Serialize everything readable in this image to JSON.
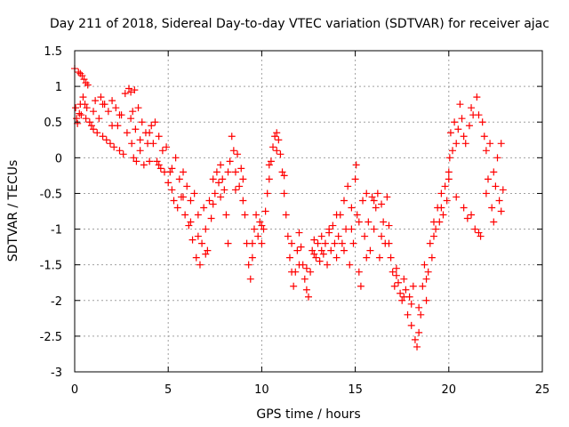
{
  "chart_data": {
    "type": "scatter",
    "title": "Day 211 of 2018, Sidereal Day-to-day VTEC variation (SDTVAR) for receiver ajac",
    "xlabel": "GPS time / hours",
    "ylabel": "SDTVAR / TECUs",
    "xlim": [
      0,
      25
    ],
    "ylim": [
      -3,
      1.5
    ],
    "xticks": [
      "0",
      "5",
      "10",
      "15",
      "20",
      "25"
    ],
    "yticks": [
      "-3",
      "-2.5",
      "-2",
      "-1.5",
      "-1",
      "-0.5",
      "0",
      "0.5",
      "1",
      "1.5"
    ],
    "grid": true,
    "marker": "plus",
    "colors": {
      "points": "#ff0000",
      "grid": "#a0a0a0"
    },
    "series": [
      {
        "points": [
          [
            0.0,
            1.25
          ],
          [
            0.05,
            0.7
          ],
          [
            0.1,
            0.55
          ],
          [
            0.15,
            0.48
          ],
          [
            0.2,
            1.2
          ],
          [
            0.25,
            0.62
          ],
          [
            0.3,
            1.18
          ],
          [
            0.35,
            0.6
          ],
          [
            0.4,
            1.15
          ],
          [
            0.45,
            0.85
          ],
          [
            0.5,
            1.1
          ],
          [
            0.55,
            0.75
          ],
          [
            0.6,
            1.05
          ],
          [
            0.65,
            0.7
          ],
          [
            0.7,
            1.02
          ],
          [
            0.8,
            0.5
          ],
          [
            0.9,
            0.45
          ],
          [
            1.0,
            0.4
          ],
          [
            1.1,
            0.8
          ],
          [
            1.2,
            0.35
          ],
          [
            1.3,
            0.55
          ],
          [
            1.4,
            0.85
          ],
          [
            1.5,
            0.3
          ],
          [
            1.6,
            0.75
          ],
          [
            1.7,
            0.25
          ],
          [
            1.8,
            0.65
          ],
          [
            1.9,
            0.2
          ],
          [
            2.0,
            0.8
          ],
          [
            2.1,
            0.15
          ],
          [
            2.2,
            0.7
          ],
          [
            2.3,
            0.45
          ],
          [
            2.4,
            0.1
          ],
          [
            2.5,
            0.6
          ],
          [
            2.6,
            0.05
          ],
          [
            2.7,
            0.9
          ],
          [
            2.8,
            0.35
          ],
          [
            2.9,
            0.97
          ],
          [
            3.0,
            0.92
          ],
          [
            3.05,
            0.2
          ],
          [
            3.1,
            0.65
          ],
          [
            3.15,
            0.0
          ],
          [
            3.2,
            0.95
          ],
          [
            3.25,
            0.4
          ],
          [
            3.3,
            -0.05
          ],
          [
            3.4,
            0.7
          ],
          [
            3.5,
            0.1
          ],
          [
            3.6,
            0.5
          ],
          [
            3.7,
            -0.1
          ],
          [
            3.8,
            0.35
          ],
          [
            3.9,
            0.2
          ],
          [
            4.0,
            -0.05
          ],
          [
            4.1,
            0.45
          ],
          [
            4.2,
            0.2
          ],
          [
            4.3,
            0.5
          ],
          [
            4.4,
            -0.05
          ],
          [
            4.5,
            0.3
          ],
          [
            4.6,
            -0.15
          ],
          [
            4.7,
            0.1
          ],
          [
            4.8,
            -0.2
          ],
          [
            4.9,
            0.15
          ],
          [
            5.0,
            -0.35
          ],
          [
            5.1,
            -0.2
          ],
          [
            5.2,
            -0.45
          ],
          [
            5.3,
            -0.6
          ],
          [
            5.4,
            0.0
          ],
          [
            5.5,
            -0.7
          ],
          [
            5.6,
            -0.3
          ],
          [
            5.7,
            -0.55
          ],
          [
            5.8,
            -0.2
          ],
          [
            5.9,
            -0.8
          ],
          [
            6.0,
            -0.4
          ],
          [
            6.1,
            -0.95
          ],
          [
            6.2,
            -0.6
          ],
          [
            6.3,
            -1.15
          ],
          [
            6.4,
            -0.5
          ],
          [
            6.5,
            -1.4
          ],
          [
            6.6,
            -0.8
          ],
          [
            6.7,
            -1.5
          ],
          [
            6.8,
            -1.2
          ],
          [
            6.9,
            -0.7
          ],
          [
            7.0,
            -1.0
          ],
          [
            7.1,
            -1.3
          ],
          [
            7.2,
            -0.6
          ],
          [
            7.3,
            -0.85
          ],
          [
            7.4,
            -0.3
          ],
          [
            7.5,
            -0.5
          ],
          [
            7.6,
            -0.2
          ],
          [
            7.7,
            -0.35
          ],
          [
            7.8,
            -0.1
          ],
          [
            7.9,
            -0.3
          ],
          [
            8.0,
            -0.45
          ],
          [
            8.1,
            -0.8
          ],
          [
            8.2,
            -1.2
          ],
          [
            8.3,
            -0.05
          ],
          [
            8.4,
            0.3
          ],
          [
            8.5,
            0.1
          ],
          [
            8.6,
            -0.2
          ],
          [
            8.7,
            0.05
          ],
          [
            8.8,
            -0.4
          ],
          [
            8.9,
            -0.15
          ],
          [
            9.0,
            -0.3
          ],
          [
            9.1,
            -0.8
          ],
          [
            9.2,
            -1.2
          ],
          [
            9.3,
            -1.5
          ],
          [
            9.4,
            -1.7
          ],
          [
            9.5,
            -1.4
          ],
          [
            9.6,
            -1.0
          ],
          [
            9.7,
            -0.8
          ],
          [
            9.8,
            -1.1
          ],
          [
            9.9,
            -0.9
          ],
          [
            10.0,
            -1.2
          ],
          [
            10.1,
            -1.0
          ],
          [
            10.2,
            -0.75
          ],
          [
            10.3,
            -0.5
          ],
          [
            10.4,
            -0.3
          ],
          [
            10.5,
            -0.05
          ],
          [
            10.6,
            0.15
          ],
          [
            10.7,
            0.3
          ],
          [
            10.8,
            0.35
          ],
          [
            10.9,
            0.25
          ],
          [
            11.0,
            0.05
          ],
          [
            11.1,
            -0.2
          ],
          [
            11.2,
            -0.5
          ],
          [
            11.3,
            -0.8
          ],
          [
            11.4,
            -1.1
          ],
          [
            11.5,
            -1.4
          ],
          [
            11.6,
            -1.6
          ],
          [
            11.7,
            -1.8
          ],
          [
            11.8,
            -1.6
          ],
          [
            11.9,
            -1.3
          ],
          [
            12.0,
            -1.05
          ],
          [
            12.1,
            -1.25
          ],
          [
            12.2,
            -1.5
          ],
          [
            12.3,
            -1.7
          ],
          [
            12.4,
            -1.85
          ],
          [
            12.5,
            -1.95
          ],
          [
            12.6,
            -1.6
          ],
          [
            12.7,
            -1.3
          ],
          [
            12.8,
            -1.15
          ],
          [
            12.9,
            -1.4
          ],
          [
            13.0,
            -1.2
          ],
          [
            13.1,
            -1.45
          ],
          [
            13.2,
            -1.1
          ],
          [
            13.3,
            -1.35
          ],
          [
            13.4,
            -1.2
          ],
          [
            13.5,
            -1.5
          ],
          [
            13.6,
            -1.05
          ],
          [
            13.7,
            -1.3
          ],
          [
            13.8,
            -0.95
          ],
          [
            13.9,
            -1.2
          ],
          [
            14.0,
            -1.4
          ],
          [
            14.1,
            -1.1
          ],
          [
            14.2,
            -0.8
          ],
          [
            14.3,
            -1.2
          ],
          [
            14.4,
            -0.6
          ],
          [
            14.5,
            -1.0
          ],
          [
            14.6,
            -0.4
          ],
          [
            14.7,
            -1.5
          ],
          [
            14.8,
            -0.7
          ],
          [
            14.9,
            -1.2
          ],
          [
            15.0,
            -0.3
          ],
          [
            15.05,
            -0.1
          ],
          [
            15.1,
            -0.8
          ],
          [
            15.2,
            -1.6
          ],
          [
            15.3,
            -1.8
          ],
          [
            15.4,
            -0.6
          ],
          [
            15.5,
            -1.1
          ],
          [
            15.6,
            -0.5
          ],
          [
            15.7,
            -0.9
          ],
          [
            15.8,
            -1.3
          ],
          [
            15.9,
            -0.55
          ],
          [
            16.0,
            -1.0
          ],
          [
            16.1,
            -0.7
          ],
          [
            16.2,
            -0.5
          ],
          [
            16.3,
            -1.4
          ],
          [
            16.4,
            -0.65
          ],
          [
            16.5,
            -0.9
          ],
          [
            16.6,
            -1.2
          ],
          [
            16.7,
            -0.55
          ],
          [
            16.8,
            -0.95
          ],
          [
            16.9,
            -1.4
          ],
          [
            17.0,
            -1.6
          ],
          [
            17.1,
            -1.8
          ],
          [
            17.2,
            -1.55
          ],
          [
            17.3,
            -1.75
          ],
          [
            17.4,
            -1.9
          ],
          [
            17.5,
            -2.0
          ],
          [
            17.6,
            -1.7
          ],
          [
            17.7,
            -1.85
          ],
          [
            17.8,
            -2.2
          ],
          [
            17.9,
            -1.95
          ],
          [
            18.0,
            -2.35
          ],
          [
            18.1,
            -1.8
          ],
          [
            18.2,
            -2.55
          ],
          [
            18.3,
            -2.65
          ],
          [
            18.4,
            -2.45
          ],
          [
            18.5,
            -2.2
          ],
          [
            18.6,
            -1.8
          ],
          [
            18.7,
            -1.5
          ],
          [
            18.8,
            -2.0
          ],
          [
            18.9,
            -1.6
          ],
          [
            19.0,
            -1.2
          ],
          [
            19.1,
            -1.4
          ],
          [
            19.2,
            -0.9
          ],
          [
            19.3,
            -1.0
          ],
          [
            19.4,
            -0.7
          ],
          [
            19.5,
            -0.9
          ],
          [
            19.6,
            -0.5
          ],
          [
            19.7,
            -0.8
          ],
          [
            19.8,
            -0.4
          ],
          [
            19.9,
            -0.6
          ],
          [
            20.0,
            -0.3
          ],
          [
            20.05,
            0.0
          ],
          [
            20.1,
            0.35
          ],
          [
            20.2,
            0.1
          ],
          [
            20.3,
            0.5
          ],
          [
            20.4,
            -0.55
          ],
          [
            20.5,
            0.4
          ],
          [
            20.6,
            0.75
          ],
          [
            20.7,
            0.55
          ],
          [
            20.8,
            -0.7
          ],
          [
            20.9,
            0.2
          ],
          [
            21.0,
            -0.85
          ],
          [
            21.1,
            0.45
          ],
          [
            21.2,
            0.7
          ],
          [
            21.3,
            0.6
          ],
          [
            21.4,
            -1.0
          ],
          [
            21.5,
            0.85
          ],
          [
            21.6,
            0.6
          ],
          [
            21.7,
            -1.1
          ],
          [
            21.8,
            0.5
          ],
          [
            21.9,
            0.3
          ],
          [
            22.0,
            -0.5
          ],
          [
            22.1,
            -0.3
          ],
          [
            22.2,
            0.2
          ],
          [
            22.3,
            -0.7
          ],
          [
            22.4,
            -0.9
          ],
          [
            22.5,
            -0.4
          ],
          [
            22.6,
            0.0
          ],
          [
            22.7,
            -0.6
          ],
          [
            22.8,
            0.2
          ],
          [
            22.9,
            -0.45
          ],
          [
            0.3,
            0.75
          ],
          [
            0.6,
            0.55
          ],
          [
            1.0,
            0.65
          ],
          [
            1.5,
            0.75
          ],
          [
            2.0,
            0.45
          ],
          [
            2.4,
            0.6
          ],
          [
            3.0,
            0.55
          ],
          [
            3.5,
            0.25
          ],
          [
            4.0,
            0.35
          ],
          [
            4.5,
            -0.1
          ],
          [
            5.2,
            -0.15
          ],
          [
            5.8,
            -0.55
          ],
          [
            6.2,
            -0.9
          ],
          [
            6.6,
            -1.1
          ],
          [
            7.0,
            -1.35
          ],
          [
            7.4,
            -0.65
          ],
          [
            7.8,
            -0.55
          ],
          [
            8.2,
            -0.2
          ],
          [
            8.6,
            -0.45
          ],
          [
            9.0,
            -0.6
          ],
          [
            9.5,
            -1.2
          ],
          [
            10.0,
            -0.95
          ],
          [
            10.4,
            -0.1
          ],
          [
            10.8,
            0.1
          ],
          [
            11.2,
            -0.25
          ],
          [
            11.6,
            -1.2
          ],
          [
            12.0,
            -1.5
          ],
          [
            12.4,
            -1.55
          ],
          [
            12.8,
            -1.35
          ],
          [
            13.2,
            -1.3
          ],
          [
            13.6,
            -1.0
          ],
          [
            14.0,
            -0.8
          ],
          [
            14.4,
            -1.3
          ],
          [
            14.8,
            -1.0
          ],
          [
            15.2,
            -0.9
          ],
          [
            15.6,
            -1.4
          ],
          [
            16.0,
            -0.6
          ],
          [
            16.4,
            -1.1
          ],
          [
            16.8,
            -1.2
          ],
          [
            17.2,
            -1.65
          ],
          [
            17.6,
            -1.95
          ],
          [
            18.0,
            -2.05
          ],
          [
            18.4,
            -2.1
          ],
          [
            18.8,
            -1.7
          ],
          [
            19.2,
            -1.1
          ],
          [
            19.6,
            -0.7
          ],
          [
            20.0,
            -0.2
          ],
          [
            20.4,
            0.2
          ],
          [
            20.8,
            0.3
          ],
          [
            21.2,
            -0.8
          ],
          [
            21.6,
            -1.05
          ],
          [
            22.0,
            0.1
          ],
          [
            22.4,
            -0.2
          ],
          [
            22.8,
            -0.75
          ]
        ]
      }
    ]
  }
}
